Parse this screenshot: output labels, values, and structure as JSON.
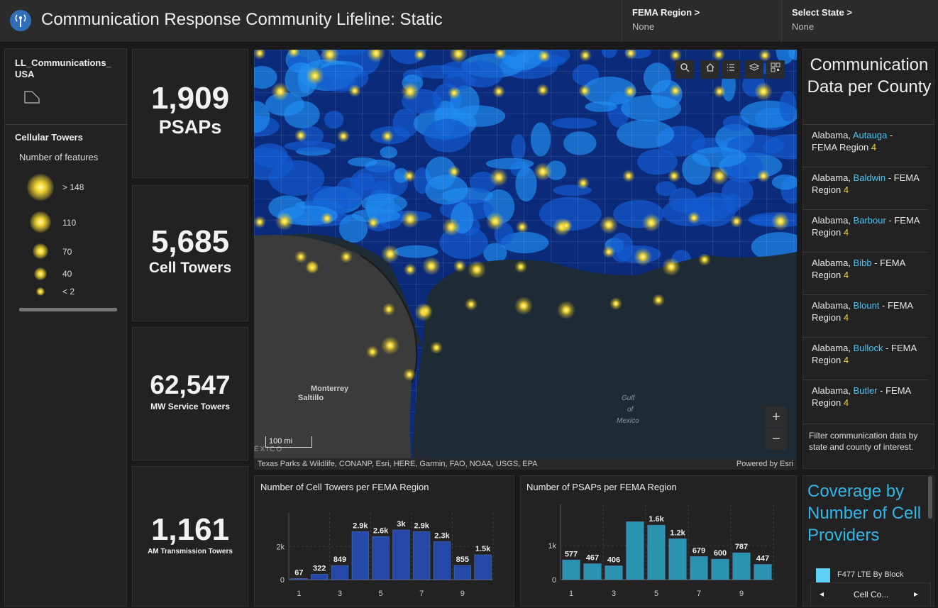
{
  "header": {
    "title": "Communication Response Community Lifeline: Static",
    "fema_region_label": "FEMA Region >",
    "fema_region_value": "None",
    "state_label": "Select State >",
    "state_value": "None"
  },
  "legend": {
    "layer_name": "LL_Communications_USA",
    "cell_towers_title": "Cellular Towers",
    "subtitle": "Number of features",
    "items": [
      ">  148",
      "110",
      "70",
      "40",
      "< 2"
    ]
  },
  "kpis": [
    {
      "value": "1,909",
      "label": "PSAPs"
    },
    {
      "value": "5,685",
      "label": "Cell Towers"
    },
    {
      "value": "62,547",
      "label": "MW Service Towers"
    },
    {
      "value": "1,161",
      "label": "AM Transmission Towers"
    }
  ],
  "map": {
    "labels": {
      "monterrey": "Monterrey",
      "saltillo": "Saltillo",
      "gulf": "Gulf",
      "of": "of",
      "mexico_water": "Mexico",
      "mexico_country": "ÉXICO"
    },
    "scale": "100 mi",
    "attribution": "Texas Parks & Wildlife, CONANP, Esri, HERE, Garmin, FAO, NOAA, USGS, EPA",
    "powered_by": "Powered by Esri",
    "zoom_in": "+",
    "zoom_out": "−"
  },
  "side_list": {
    "title": "Communication Data per County",
    "items": [
      {
        "state": "Alabama,",
        "county": "Autauga",
        "suffix": "- FEMA Region",
        "region": "4"
      },
      {
        "state": "Alabama,",
        "county": "Baldwin",
        "suffix": "- FEMA Region",
        "region": "4"
      },
      {
        "state": "Alabama,",
        "county": "Barbour",
        "suffix": "- FEMA Region",
        "region": "4"
      },
      {
        "state": "Alabama,",
        "county": "Bibb",
        "suffix": "- FEMA Region",
        "region": "4"
      },
      {
        "state": "Alabama,",
        "county": "Blount",
        "suffix": "- FEMA Region",
        "region": "4"
      },
      {
        "state": "Alabama,",
        "county": "Bullock",
        "suffix": "- FEMA Region",
        "region": "4"
      },
      {
        "state": "Alabama,",
        "county": "Butler",
        "suffix": "- FEMA Region",
        "region": "4"
      }
    ],
    "filter_text": "Filter communication data by state and  county of interest."
  },
  "coverage": {
    "title": "Coverage by Number of Cell Providers",
    "legend_item": "F477 LTE By Block",
    "nav_label": "Cell Co...",
    "legend_color": "#5fd0f5"
  },
  "chart_data": [
    {
      "type": "bar",
      "title": "Number of Cell Towers per FEMA Region",
      "categories": [
        "1",
        "2",
        "3",
        "4",
        "5",
        "6",
        "7",
        "8",
        "9",
        "10"
      ],
      "values": [
        67,
        322,
        849,
        2900,
        2600,
        3000,
        2900,
        2300,
        855,
        1500
      ],
      "data_labels": [
        "67",
        "322",
        "849",
        "2.9k",
        "2.6k",
        "3k",
        "2.9k",
        "2.3k",
        "855",
        "1.5k"
      ],
      "x_ticks": [
        "1",
        "3",
        "5",
        "7",
        "9"
      ],
      "y_ticks": [
        "0",
        "2k"
      ],
      "ylim": [
        0,
        3600
      ],
      "color": "#2548a8"
    },
    {
      "type": "bar",
      "title": "Number of PSAPs per FEMA Region",
      "categories": [
        "1",
        "2",
        "3",
        "4",
        "5",
        "6",
        "7",
        "8",
        "9",
        "10"
      ],
      "values": [
        577,
        467,
        406,
        1700,
        1600,
        1200,
        679,
        600,
        787,
        447
      ],
      "data_labels": [
        "577",
        "467",
        "406",
        "",
        "1.6k",
        "1.2k",
        "679",
        "600",
        "787",
        "447"
      ],
      "x_ticks": [
        "1",
        "3",
        "5",
        "7",
        "9"
      ],
      "y_ticks": [
        "0",
        "1k"
      ],
      "ylim": [
        0,
        2000
      ],
      "color": "#2a94b0"
    }
  ]
}
